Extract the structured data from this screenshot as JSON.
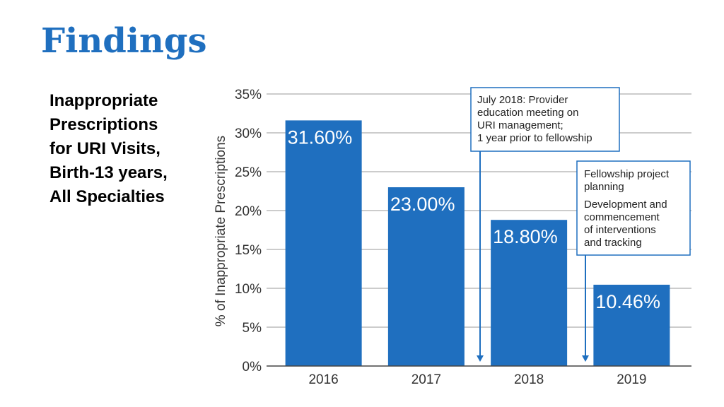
{
  "page": {
    "title": "Findings",
    "subtitle_lines": [
      "Inappropriate",
      "Prescriptions",
      "for URI Visits,",
      "Birth-13 years,",
      "All Specialties"
    ]
  },
  "chart_data": {
    "type": "bar",
    "categories": [
      "2016",
      "2017",
      "2018",
      "2019"
    ],
    "values": [
      31.6,
      23.0,
      18.8,
      10.46
    ],
    "data_labels": [
      "31.60%",
      "23.00%",
      "18.80%",
      "10.46%"
    ],
    "ylabel": "% of Inappropriate Prescriptions",
    "ylim": [
      0,
      35
    ],
    "yticks": [
      "0%",
      "5%",
      "10%",
      "15%",
      "20%",
      "25%",
      "30%",
      "35%"
    ],
    "grid": true,
    "bar_color": "#1f6fbf",
    "annotations": [
      {
        "lines": [
          "July 2018: Provider",
          "education meeting on",
          "URI management;",
          "1 year prior to fellowship"
        ],
        "between": [
          "2017",
          "2018"
        ]
      },
      {
        "lines": [
          "Fellowship project",
          "planning"
        ],
        "lines2": [
          "Development and",
          "commencement",
          "of interventions",
          "and tracking"
        ],
        "between": [
          "2018",
          "2019"
        ]
      }
    ]
  }
}
